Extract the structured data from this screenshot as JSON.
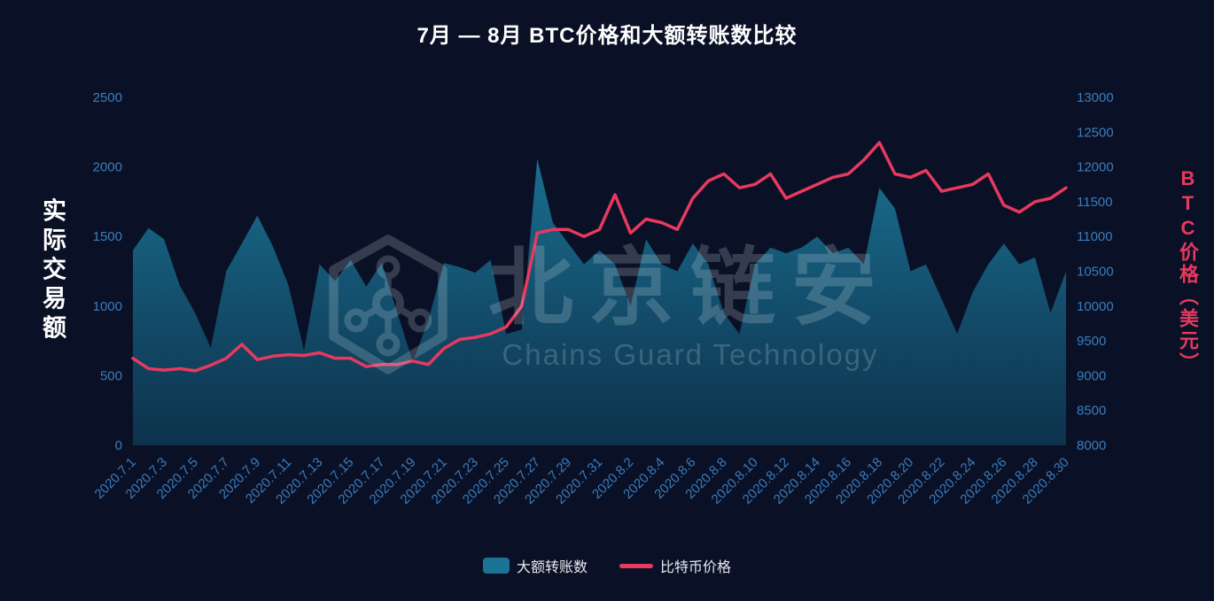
{
  "title": "7月 — 8月 BTC价格和大额转账数比较",
  "axes": {
    "left_title": "实际交易额",
    "right_title": "BTC价格（美元）"
  },
  "watermark": {
    "brand": "北京链安",
    "subtitle": "Chains Guard Technology"
  },
  "legend": {
    "items": [
      {
        "label": "大额转账数",
        "type": "area",
        "color": "#1b7395"
      },
      {
        "label": "比特币价格",
        "type": "line",
        "color": "#e8395f"
      }
    ]
  },
  "colors": {
    "background": "#0a1126",
    "tick_label": "#3b7cbd",
    "area_fill_top": "#1b7395",
    "area_fill_bottom": "#0d3550",
    "price_line": "#e8395f"
  },
  "chart_data": {
    "type": "area+line",
    "x": [
      "2020.7.1",
      "2020.7.2",
      "2020.7.3",
      "2020.7.4",
      "2020.7.5",
      "2020.7.6",
      "2020.7.7",
      "2020.7.8",
      "2020.7.9",
      "2020.7.10",
      "2020.7.11",
      "2020.7.12",
      "2020.7.13",
      "2020.7.14",
      "2020.7.15",
      "2020.7.16",
      "2020.7.17",
      "2020.7.18",
      "2020.7.19",
      "2020.7.20",
      "2020.7.21",
      "2020.7.22",
      "2020.7.23",
      "2020.7.24",
      "2020.7.25",
      "2020.7.26",
      "2020.7.27",
      "2020.7.28",
      "2020.7.29",
      "2020.7.30",
      "2020.7.31",
      "2020.8.1",
      "2020.8.2",
      "2020.8.3",
      "2020.8.4",
      "2020.8.5",
      "2020.8.6",
      "2020.8.7",
      "2020.8.8",
      "2020.8.9",
      "2020.8.10",
      "2020.8.11",
      "2020.8.12",
      "2020.8.13",
      "2020.8.14",
      "2020.8.15",
      "2020.8.16",
      "2020.8.17",
      "2020.8.18",
      "2020.8.19",
      "2020.8.20",
      "2020.8.21",
      "2020.8.22",
      "2020.8.23",
      "2020.8.24",
      "2020.8.25",
      "2020.8.26",
      "2020.8.27",
      "2020.8.28",
      "2020.8.29",
      "2020.8.30"
    ],
    "x_tick_step": 2,
    "series": [
      {
        "name": "大额转账数",
        "type": "area",
        "axis": "left",
        "color": "#1b7395",
        "values": [
          1400,
          1560,
          1480,
          1150,
          950,
          700,
          1250,
          1450,
          1650,
          1430,
          1150,
          680,
          1300,
          1180,
          1330,
          1140,
          1310,
          950,
          600,
          900,
          1310,
          1280,
          1240,
          1330,
          800,
          830,
          2060,
          1600,
          1450,
          1300,
          1400,
          1300,
          1000,
          1480,
          1300,
          1250,
          1450,
          1300,
          950,
          800,
          1300,
          1420,
          1380,
          1420,
          1500,
          1380,
          1420,
          1300,
          1850,
          1700,
          1250,
          1300,
          1050,
          800,
          1100,
          1300,
          1450,
          1300,
          1350,
          950,
          1250
        ]
      },
      {
        "name": "比特币价格",
        "type": "line",
        "axis": "right",
        "color": "#e8395f",
        "values": [
          9250,
          9100,
          9080,
          9100,
          9070,
          9150,
          9250,
          9450,
          9230,
          9280,
          9300,
          9290,
          9330,
          9250,
          9250,
          9130,
          9160,
          9160,
          9210,
          9160,
          9390,
          9520,
          9550,
          9600,
          9700,
          10000,
          11050,
          11100,
          11100,
          11000,
          11100,
          11600,
          11050,
          11250,
          11200,
          11100,
          11550,
          11800,
          11900,
          11700,
          11750,
          11900,
          11550,
          11650,
          11750,
          11850,
          11900,
          12100,
          12350,
          11900,
          11850,
          11950,
          11650,
          11700,
          11750,
          11900,
          11450,
          11350,
          11500,
          11550,
          11700
        ]
      }
    ],
    "left_axis": {
      "ticks": [
        0,
        500,
        1000,
        1500,
        2000,
        2500
      ],
      "range": [
        0,
        2500
      ]
    },
    "right_axis": {
      "ticks": [
        8000,
        8500,
        9000,
        9500,
        10000,
        10500,
        11000,
        11500,
        12000,
        12500,
        13000
      ],
      "range": [
        8000,
        13000
      ]
    }
  }
}
